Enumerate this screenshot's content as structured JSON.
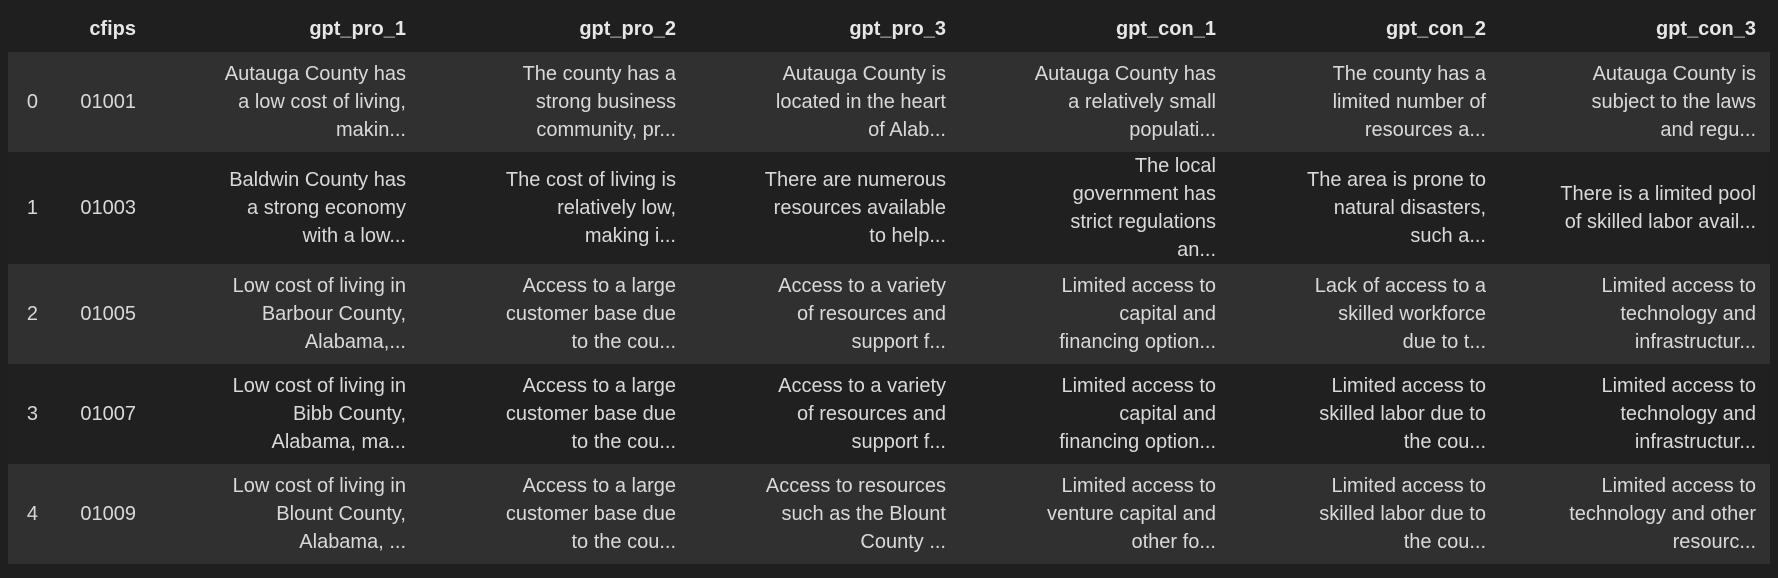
{
  "table": {
    "columns": [
      "",
      "cfips",
      "gpt_pro_1",
      "gpt_pro_2",
      "gpt_pro_3",
      "gpt_con_1",
      "gpt_con_2",
      "gpt_con_3"
    ],
    "rows": [
      {
        "index": "0",
        "cfips": "01001",
        "gpt_pro_1": "Autauga County has\na low cost of living,\nmakin...",
        "gpt_pro_2": "The county has a\nstrong business\ncommunity, pr...",
        "gpt_pro_3": "Autauga County is\nlocated in the heart\nof Alab...",
        "gpt_con_1": "Autauga County has\na relatively small\npopulati...",
        "gpt_con_2": "The county has a\nlimited number of\nresources a...",
        "gpt_con_3": "Autauga County is\nsubject to the laws\nand regu..."
      },
      {
        "index": "1",
        "cfips": "01003",
        "gpt_pro_1": "Baldwin County has\na strong economy\nwith a low...",
        "gpt_pro_2": "The cost of living is\nrelatively low,\nmaking i...",
        "gpt_pro_3": "There are numerous\nresources available\nto help...",
        "gpt_con_1": "The local\ngovernment has\nstrict regulations\nan...",
        "gpt_con_2": "The area is prone to\nnatural disasters,\nsuch a...",
        "gpt_con_3": "There is a limited pool\nof skilled labor avail..."
      },
      {
        "index": "2",
        "cfips": "01005",
        "gpt_pro_1": "Low cost of living in\nBarbour County,\nAlabama,...",
        "gpt_pro_2": "Access to a large\ncustomer base due\nto the cou...",
        "gpt_pro_3": "Access to a variety\nof resources and\nsupport f...",
        "gpt_con_1": "Limited access to\ncapital and\nfinancing option...",
        "gpt_con_2": "Lack of access to a\nskilled workforce\ndue to t...",
        "gpt_con_3": "Limited access to\ntechnology and\ninfrastructur..."
      },
      {
        "index": "3",
        "cfips": "01007",
        "gpt_pro_1": "Low cost of living in\nBibb County,\nAlabama, ma...",
        "gpt_pro_2": "Access to a large\ncustomer base due\nto the cou...",
        "gpt_pro_3": "Access to a variety\nof resources and\nsupport f...",
        "gpt_con_1": "Limited access to\ncapital and\nfinancing option...",
        "gpt_con_2": "Limited access to\nskilled labor due to\nthe cou...",
        "gpt_con_3": "Limited access to\ntechnology and\ninfrastructur..."
      },
      {
        "index": "4",
        "cfips": "01009",
        "gpt_pro_1": "Low cost of living in\nBlount County,\nAlabama, ...",
        "gpt_pro_2": "Access to a large\ncustomer base due\nto the cou...",
        "gpt_pro_3": "Access to resources\nsuch as the Blount\nCounty ...",
        "gpt_con_1": "Limited access to\nventure capital and\nother fo...",
        "gpt_con_2": "Limited access to\nskilled labor due to\nthe cou...",
        "gpt_con_3": "Limited access to\ntechnology and other\nresourc..."
      }
    ]
  },
  "colors": {
    "background": "#1f1f1f",
    "row_odd": "#303030",
    "row_even": "#202020",
    "text": "#d9d9d9"
  }
}
